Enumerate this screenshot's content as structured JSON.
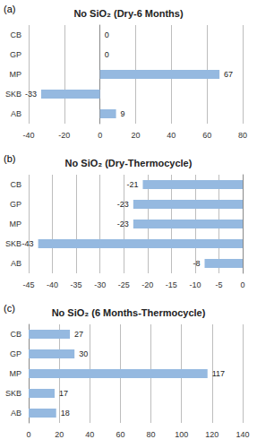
{
  "chart_data": [
    {
      "type": "bar",
      "annotation": "(a)",
      "title": "No SiO₂ (Dry-6 Months)",
      "orientation": "horizontal",
      "categories": [
        "CB",
        "GP",
        "MP",
        "SKB",
        "AB"
      ],
      "values": [
        0,
        0,
        67,
        -33,
        9
      ],
      "color": "#95b9e0",
      "xlim": [
        -40,
        80
      ],
      "xticks": [
        -40,
        -20,
        0,
        20,
        40,
        60,
        80
      ],
      "grid": true,
      "data_labels": true
    },
    {
      "type": "bar",
      "annotation": "(b)",
      "title": "No SiO₂ (Dry-Thermocycle)",
      "orientation": "horizontal",
      "categories": [
        "CB",
        "GP",
        "MP",
        "SKB",
        "AB"
      ],
      "values": [
        -21,
        -23,
        -23,
        -43,
        -8
      ],
      "color": "#95b9e0",
      "xlim": [
        -45,
        0
      ],
      "xticks": [
        -45,
        -40,
        -35,
        -30,
        -25,
        -20,
        -15,
        -10,
        -5,
        0
      ],
      "grid": true,
      "data_labels": true
    },
    {
      "type": "bar",
      "annotation": "(c)",
      "title": "No SiO₂ (6 Months-Thermocycle)",
      "orientation": "horizontal",
      "categories": [
        "CB",
        "GP",
        "MP",
        "SKB",
        "AB"
      ],
      "values": [
        27,
        30,
        117,
        17,
        18
      ],
      "color": "#95b9e0",
      "xlim": [
        0,
        140
      ],
      "xticks": [
        0,
        20,
        40,
        60,
        80,
        100,
        120,
        140
      ],
      "grid": true,
      "data_labels": true
    }
  ]
}
